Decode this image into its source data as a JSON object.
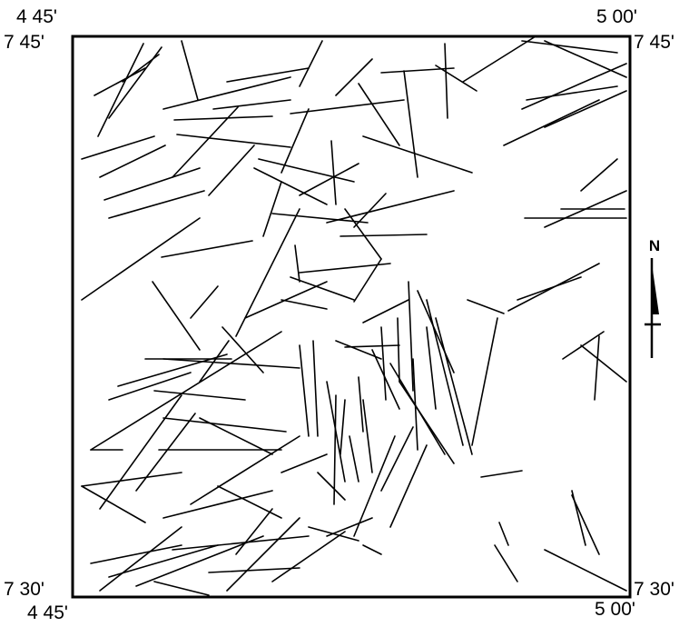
{
  "map": {
    "corners": {
      "top_left_longitude": "4 45'",
      "top_right_longitude": "5 00'",
      "top_left_latitude": "7 45'",
      "top_right_latitude": "7 45'",
      "bottom_left_latitude": "7 30'",
      "bottom_right_latitude": "7 30'",
      "bottom_left_longitude": "4 45'",
      "bottom_right_longitude": "5 00'"
    },
    "north_label": "N",
    "line_color": "#000000",
    "frame_color": "#000000",
    "background_color": "#ffffff"
  }
}
